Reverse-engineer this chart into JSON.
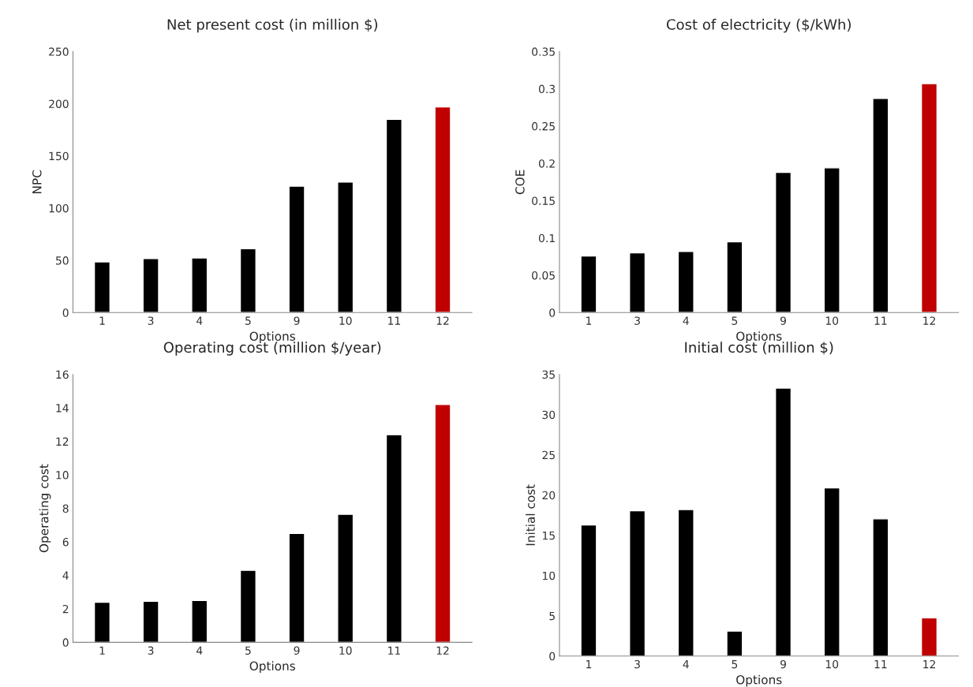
{
  "chart_data": [
    {
      "type": "bar",
      "title": "Net present cost (in million $)",
      "xlabel": "Options",
      "ylabel": "NPC",
      "categories": [
        "1",
        "3",
        "4",
        "5",
        "9",
        "10",
        "11",
        "12"
      ],
      "values": [
        48.5,
        51.8,
        52.4,
        61.2,
        121,
        125,
        185,
        197
      ],
      "colors": [
        "#000000",
        "#000000",
        "#000000",
        "#000000",
        "#000000",
        "#000000",
        "#000000",
        "#c00000"
      ],
      "ylim": [
        0,
        250
      ],
      "yticks": [
        0,
        50,
        100,
        150,
        200,
        250
      ],
      "grid": false,
      "legend": false
    },
    {
      "type": "bar",
      "title": "Cost of electricity ($/kWh)",
      "xlabel": "Options",
      "ylabel": "COE",
      "categories": [
        "1",
        "3",
        "4",
        "5",
        "9",
        "10",
        "11",
        "12"
      ],
      "values": [
        0.076,
        0.08,
        0.082,
        0.095,
        0.188,
        0.194,
        0.287,
        0.307
      ],
      "colors": [
        "#000000",
        "#000000",
        "#000000",
        "#000000",
        "#000000",
        "#000000",
        "#000000",
        "#c00000"
      ],
      "ylim": [
        0,
        0.35
      ],
      "yticks": [
        0,
        0.05,
        0.1,
        0.15,
        0.2,
        0.25,
        0.3,
        0.35
      ],
      "grid": false,
      "legend": false
    },
    {
      "type": "bar",
      "title": "Operating cost (million $/year)",
      "xlabel": "Options",
      "ylabel": "Operating cost",
      "categories": [
        "1",
        "3",
        "4",
        "5",
        "9",
        "10",
        "11",
        "12"
      ],
      "values": [
        2.4,
        2.45,
        2.5,
        4.3,
        6.5,
        7.65,
        12.4,
        14.2
      ],
      "colors": [
        "#000000",
        "#000000",
        "#000000",
        "#000000",
        "#000000",
        "#000000",
        "#000000",
        "#c00000"
      ],
      "ylim": [
        0,
        16
      ],
      "yticks": [
        0,
        2,
        4,
        6,
        8,
        10,
        12,
        14,
        16
      ],
      "grid": false,
      "legend": false
    },
    {
      "type": "bar",
      "title": "Initial cost (million $)",
      "xlabel": "Options",
      "ylabel": "Initial cost",
      "categories": [
        "1",
        "3",
        "4",
        "5",
        "9",
        "10",
        "11",
        "12"
      ],
      "values": [
        16.3,
        18.05,
        18.2,
        3.1,
        33.3,
        20.9,
        17.05,
        4.75
      ],
      "colors": [
        "#000000",
        "#000000",
        "#000000",
        "#000000",
        "#000000",
        "#000000",
        "#000000",
        "#c00000"
      ],
      "ylim": [
        0,
        35
      ],
      "yticks": [
        0,
        5,
        10,
        15,
        20,
        25,
        30,
        35
      ],
      "grid": false,
      "legend": false
    }
  ]
}
